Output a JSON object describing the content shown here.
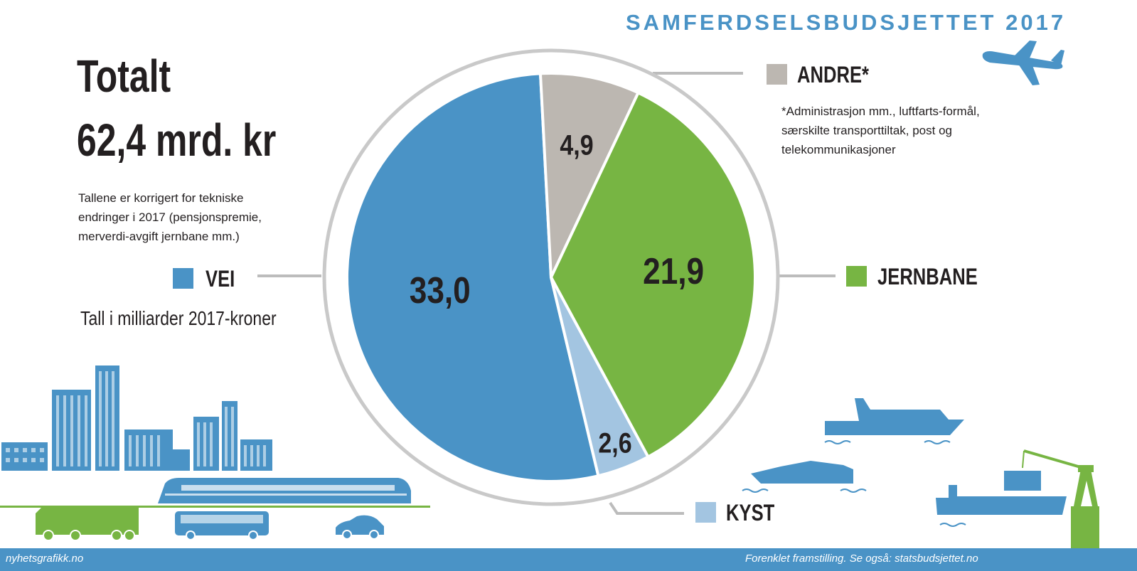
{
  "header": {
    "title": "SAMFERDSELSBUDSJETTET 2017"
  },
  "total": {
    "label": "Totalt",
    "value": "62,4 mrd. kr"
  },
  "note": "Tallene er korrigert for tekniske endringer i 2017 (pensjonspremie, merverdi-avgift jernbane mm.)",
  "unit_label": "Tall i milliarder 2017-kroner",
  "andre_footnote": "*Administrasjon mm., luftfarts-formål, særskilte transporttiltak, post og telekommunikasjoner",
  "footer": {
    "source": "nyhetsgrafikk.no",
    "note": "Forenklet framstilling. Se også: statsbudsjettet.no"
  },
  "colors": {
    "vei": "#4a93c6",
    "andre": "#bcb7b1",
    "jernbane": "#77b543",
    "kyst": "#a3c5e1",
    "accent": "#4a93c6",
    "illustration_green": "#77b543"
  },
  "icons": [
    "airplane-icon",
    "city-skyline-icon",
    "train-icon",
    "truck-icon",
    "bus-icon",
    "car-icon",
    "cruise-ship-icon",
    "ferry-icon",
    "cargo-ship-icon",
    "crane-icon"
  ],
  "chart_data": {
    "type": "pie",
    "title": "",
    "unit": "Tall i milliarder 2017-kroner",
    "categories": [
      "VEI",
      "ANDRE*",
      "JERNBANE",
      "KYST"
    ],
    "values": [
      33.0,
      4.9,
      21.9,
      2.6
    ],
    "value_labels": [
      "33,0",
      "4,9",
      "21,9",
      "2,6"
    ],
    "total": 62.4
  }
}
